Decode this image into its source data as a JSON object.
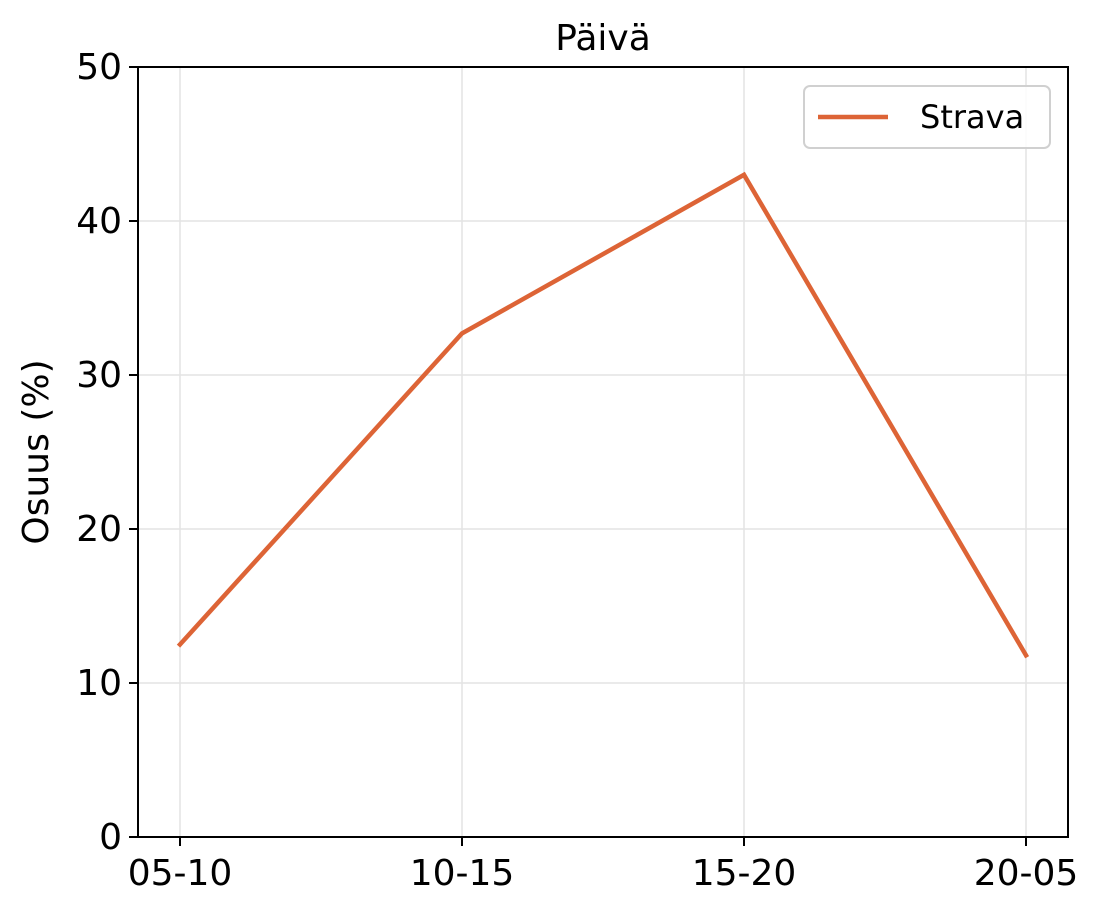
{
  "chart_data": {
    "type": "line",
    "title": "Päivä",
    "xlabel": "",
    "ylabel": "Osuus (%)",
    "categories": [
      "05-10",
      "10-15",
      "15-20",
      "20-05"
    ],
    "series": [
      {
        "name": "Strava",
        "values": [
          12.5,
          32.7,
          43.0,
          11.8
        ],
        "color": "#dd6436"
      }
    ],
    "ylim": [
      0,
      50
    ],
    "yticks": [
      0,
      10,
      20,
      30,
      40,
      50
    ],
    "grid": true,
    "legend_position": "top-right"
  }
}
